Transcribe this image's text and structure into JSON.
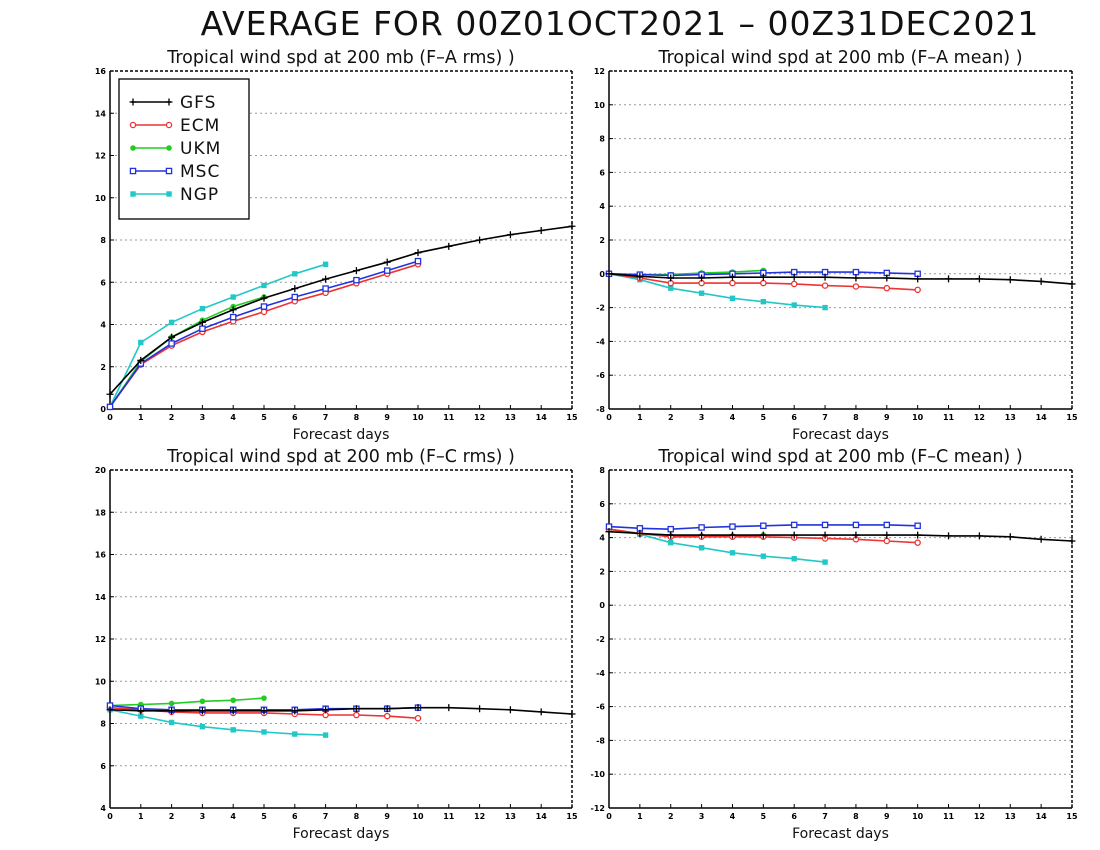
{
  "page": {
    "title": "AVERAGE FOR 00Z01OCT2021 – 00Z31DEC2021"
  },
  "legend": [
    {
      "name": "GFS",
      "color": "#000000",
      "marker": "plus"
    },
    {
      "name": "ECM",
      "color": "#ee3333",
      "marker": "circle"
    },
    {
      "name": "UKM",
      "color": "#22cc22",
      "marker": "filled-circle"
    },
    {
      "name": "MSC",
      "color": "#2233dd",
      "marker": "square"
    },
    {
      "name": "NGP",
      "color": "#22c8c8",
      "marker": "filled-square"
    }
  ],
  "chart_data": [
    {
      "type": "line",
      "title": "Tropical wind spd at 200 mb (F–A rms) )",
      "xlabel": "Forecast days",
      "ylabel": "",
      "xlim": [
        0,
        15
      ],
      "ylim": [
        0,
        16
      ],
      "yticks": [
        0,
        2,
        4,
        6,
        8,
        10,
        12,
        14,
        16
      ],
      "xticks": [
        0,
        1,
        2,
        3,
        4,
        5,
        6,
        7,
        8,
        9,
        10,
        11,
        12,
        13,
        14,
        15
      ],
      "grid": true,
      "legend_position": "top-left",
      "series": [
        {
          "name": "GFS",
          "x": [
            0,
            1,
            2,
            3,
            4,
            5,
            6,
            7,
            8,
            9,
            10,
            11,
            12,
            13,
            14,
            15
          ],
          "values": [
            0.7,
            2.3,
            3.4,
            4.1,
            4.7,
            5.25,
            5.7,
            6.15,
            6.55,
            6.95,
            7.4,
            7.7,
            8.0,
            8.25,
            8.45,
            8.65
          ]
        },
        {
          "name": "ECM",
          "x": [
            0,
            1,
            2,
            3,
            4,
            5,
            6,
            7,
            8,
            9,
            10
          ],
          "values": [
            0.1,
            2.1,
            3.0,
            3.65,
            4.15,
            4.6,
            5.1,
            5.5,
            5.95,
            6.4,
            6.85
          ]
        },
        {
          "name": "UKM",
          "x": [
            0,
            1,
            2,
            3,
            4,
            5
          ],
          "values": [
            0.1,
            2.25,
            3.4,
            4.2,
            4.85,
            5.3
          ]
        },
        {
          "name": "MSC",
          "x": [
            0,
            1,
            2,
            3,
            4,
            5,
            6,
            7,
            8,
            9,
            10
          ],
          "values": [
            0.1,
            2.15,
            3.1,
            3.8,
            4.35,
            4.85,
            5.3,
            5.7,
            6.1,
            6.55,
            7.0
          ]
        },
        {
          "name": "NGP",
          "x": [
            0,
            1,
            2,
            3,
            4,
            5,
            6,
            7
          ],
          "values": [
            0.1,
            3.15,
            4.1,
            4.75,
            5.3,
            5.85,
            6.4,
            6.85
          ]
        }
      ]
    },
    {
      "type": "line",
      "title": "Tropical wind spd at 200 mb (F–A mean) )",
      "xlabel": "Forecast days",
      "ylabel": "",
      "xlim": [
        0,
        15
      ],
      "ylim": [
        -8,
        12
      ],
      "yticks": [
        -8,
        -6,
        -4,
        -2,
        0,
        2,
        4,
        6,
        8,
        10,
        12
      ],
      "xticks": [
        0,
        1,
        2,
        3,
        4,
        5,
        6,
        7,
        8,
        9,
        10,
        11,
        12,
        13,
        14,
        15
      ],
      "grid": true,
      "series": [
        {
          "name": "GFS",
          "x": [
            0,
            1,
            2,
            3,
            4,
            5,
            6,
            7,
            8,
            9,
            10,
            11,
            12,
            13,
            14,
            15
          ],
          "values": [
            0.0,
            -0.15,
            -0.25,
            -0.25,
            -0.2,
            -0.2,
            -0.2,
            -0.2,
            -0.25,
            -0.25,
            -0.3,
            -0.3,
            -0.3,
            -0.35,
            -0.45,
            -0.6
          ]
        },
        {
          "name": "ECM",
          "x": [
            0,
            1,
            2,
            3,
            4,
            5,
            6,
            7,
            8,
            9,
            10
          ],
          "values": [
            0.0,
            -0.25,
            -0.55,
            -0.55,
            -0.55,
            -0.55,
            -0.6,
            -0.7,
            -0.75,
            -0.85,
            -0.95
          ]
        },
        {
          "name": "UKM",
          "x": [
            0,
            1,
            2,
            3,
            4,
            5
          ],
          "values": [
            0.0,
            -0.05,
            -0.05,
            0.05,
            0.1,
            0.2
          ]
        },
        {
          "name": "MSC",
          "x": [
            0,
            1,
            2,
            3,
            4,
            5,
            6,
            7,
            8,
            9,
            10
          ],
          "values": [
            0.0,
            -0.05,
            -0.1,
            -0.05,
            0.0,
            0.05,
            0.1,
            0.1,
            0.1,
            0.05,
            0.0
          ]
        },
        {
          "name": "NGP",
          "x": [
            0,
            1,
            2,
            3,
            4,
            5,
            6,
            7
          ],
          "values": [
            0.0,
            -0.35,
            -0.85,
            -1.15,
            -1.45,
            -1.65,
            -1.85,
            -2.0
          ]
        }
      ]
    },
    {
      "type": "line",
      "title": "Tropical wind spd at 200 mb (F–C rms) )",
      "xlabel": "Forecast days",
      "ylabel": "",
      "xlim": [
        0,
        15
      ],
      "ylim": [
        4,
        20
      ],
      "yticks": [
        4,
        6,
        8,
        10,
        12,
        14,
        16,
        18,
        20
      ],
      "xticks": [
        0,
        1,
        2,
        3,
        4,
        5,
        6,
        7,
        8,
        9,
        10,
        11,
        12,
        13,
        14,
        15
      ],
      "grid": true,
      "series": [
        {
          "name": "GFS",
          "x": [
            0,
            1,
            2,
            3,
            4,
            5,
            6,
            7,
            8,
            9,
            10,
            11,
            12,
            13,
            14,
            15
          ],
          "values": [
            8.65,
            8.6,
            8.6,
            8.6,
            8.6,
            8.6,
            8.6,
            8.65,
            8.7,
            8.7,
            8.75,
            8.75,
            8.7,
            8.65,
            8.55,
            8.45
          ]
        },
        {
          "name": "ECM",
          "x": [
            0,
            1,
            2,
            3,
            4,
            5,
            6,
            7,
            8,
            9,
            10
          ],
          "values": [
            8.75,
            8.65,
            8.55,
            8.5,
            8.5,
            8.5,
            8.45,
            8.4,
            8.4,
            8.35,
            8.25
          ]
        },
        {
          "name": "UKM",
          "x": [
            0,
            1,
            2,
            3,
            4,
            5
          ],
          "values": [
            8.85,
            8.9,
            8.95,
            9.05,
            9.1,
            9.2
          ]
        },
        {
          "name": "MSC",
          "x": [
            0,
            1,
            2,
            3,
            4,
            5,
            6,
            7,
            8,
            9,
            10
          ],
          "values": [
            8.85,
            8.7,
            8.65,
            8.65,
            8.65,
            8.65,
            8.65,
            8.7,
            8.7,
            8.7,
            8.75
          ]
        },
        {
          "name": "NGP",
          "x": [
            0,
            1,
            2,
            3,
            4,
            5,
            6,
            7
          ],
          "values": [
            8.65,
            8.35,
            8.05,
            7.85,
            7.7,
            7.6,
            7.5,
            7.45
          ]
        }
      ]
    },
    {
      "type": "line",
      "title": "Tropical wind spd at 200 mb (F–C mean) )",
      "xlabel": "Forecast days",
      "ylabel": "",
      "xlim": [
        0,
        15
      ],
      "ylim": [
        -12,
        8
      ],
      "yticks": [
        -12,
        -10,
        -8,
        -6,
        -4,
        -2,
        0,
        2,
        4,
        6,
        8
      ],
      "xticks": [
        0,
        1,
        2,
        3,
        4,
        5,
        6,
        7,
        8,
        9,
        10,
        11,
        12,
        13,
        14,
        15
      ],
      "grid": true,
      "series": [
        {
          "name": "GFS",
          "x": [
            0,
            1,
            2,
            3,
            4,
            5,
            6,
            7,
            8,
            9,
            10,
            11,
            12,
            13,
            14,
            15
          ],
          "values": [
            4.35,
            4.25,
            4.15,
            4.15,
            4.15,
            4.15,
            4.15,
            4.15,
            4.15,
            4.15,
            4.15,
            4.1,
            4.1,
            4.05,
            3.9,
            3.8
          ]
        },
        {
          "name": "ECM",
          "x": [
            0,
            1,
            2,
            3,
            4,
            5,
            6,
            7,
            8,
            9,
            10
          ],
          "values": [
            4.5,
            4.25,
            4.05,
            4.05,
            4.05,
            4.05,
            4.0,
            3.95,
            3.9,
            3.8,
            3.7
          ]
        },
        {
          "name": "UKM",
          "x": [
            0,
            1,
            2,
            3,
            4,
            5
          ],
          "values": [
            4.5,
            4.25,
            4.1,
            4.1,
            4.1,
            4.15
          ]
        },
        {
          "name": "MSC",
          "x": [
            0,
            1,
            2,
            3,
            4,
            5,
            6,
            7,
            8,
            9,
            10
          ],
          "values": [
            4.65,
            4.55,
            4.5,
            4.6,
            4.65,
            4.7,
            4.75,
            4.75,
            4.75,
            4.75,
            4.7
          ]
        },
        {
          "name": "NGP",
          "x": [
            0,
            1,
            2,
            3,
            4,
            5,
            6,
            7
          ],
          "values": [
            4.5,
            4.2,
            3.7,
            3.4,
            3.1,
            2.9,
            2.75,
            2.55
          ]
        }
      ]
    }
  ]
}
